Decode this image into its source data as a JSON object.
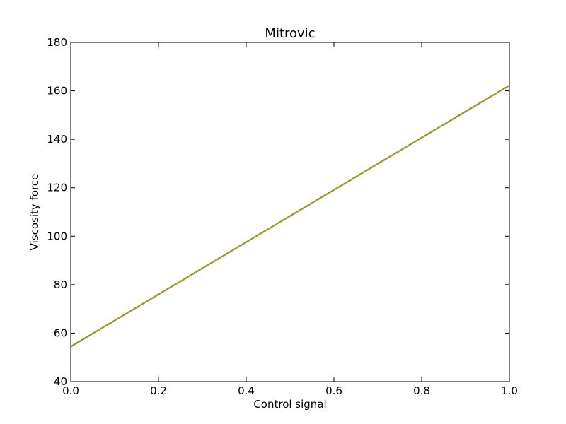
{
  "chart_data": {
    "type": "line",
    "title": "Mitrovic",
    "xlabel": "Control signal",
    "ylabel": "Viscosity force",
    "xlim": [
      0.0,
      1.0
    ],
    "ylim": [
      40,
      180
    ],
    "xticks": [
      0.0,
      0.2,
      0.4,
      0.6,
      0.8,
      1.0
    ],
    "xtick_labels": [
      "0.0",
      "0.2",
      "0.4",
      "0.6",
      "0.8",
      "1.0"
    ],
    "yticks": [
      40,
      60,
      80,
      100,
      120,
      140,
      160,
      180
    ],
    "ytick_labels": [
      "40",
      "60",
      "80",
      "100",
      "120",
      "140",
      "160",
      "180"
    ],
    "grid": false,
    "series": [
      {
        "color": "#b8a02a",
        "x": [
          0.0,
          1.0
        ],
        "y": [
          54.2,
          162.0
        ]
      },
      {
        "color": "#7e8f2e",
        "x": [
          0.0,
          1.0
        ],
        "y": [
          54.6,
          162.4
        ]
      }
    ]
  }
}
